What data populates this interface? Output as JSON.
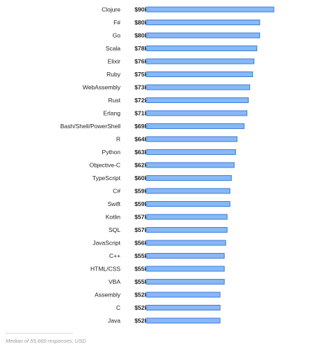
{
  "chart_data": {
    "type": "bar",
    "orientation": "horizontal",
    "categories": [
      "Clojure",
      "F#",
      "Go",
      "Scala",
      "Elixir",
      "Ruby",
      "WebAssembly",
      "Rust",
      "Erlang",
      "Bash/Shell/PowerShell",
      "R",
      "Python",
      "Objective-C",
      "TypeScript",
      "C#",
      "Swift",
      "Kotlin",
      "SQL",
      "JavaScript",
      "C++",
      "HTML/CSS",
      "VBA",
      "Assembly",
      "C",
      "Java"
    ],
    "value_labels": [
      "$90k",
      "$80k",
      "$80k",
      "$78k",
      "$76k",
      "$75k",
      "$73k",
      "$72k",
      "$71k",
      "$69k",
      "$64k",
      "$63k",
      "$62k",
      "$60k",
      "$59k",
      "$59k",
      "$57k",
      "$57k",
      "$56k",
      "$55k",
      "$55k",
      "$55k",
      "$52k",
      "$52k",
      "$52k"
    ],
    "values": [
      90,
      80,
      80,
      78,
      76,
      75,
      73,
      72,
      71,
      69,
      64,
      63,
      62,
      60,
      59,
      59,
      57,
      57,
      56,
      55,
      55,
      55,
      52,
      52,
      52
    ],
    "unit": "USD thousands",
    "grid": false,
    "legend": "none",
    "colors": {
      "bar_fill": "#88b8f5",
      "bar_stroke": "#3b7ed9",
      "text": "#222222",
      "footnote": "#9a9a9a"
    }
  },
  "footnote": "Median of 55,669 responses; USD"
}
